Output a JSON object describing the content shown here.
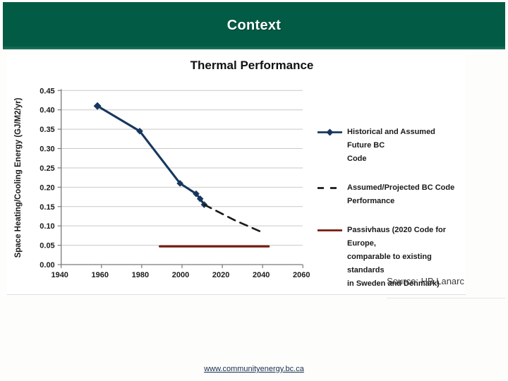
{
  "header": {
    "title": "Context"
  },
  "footer": {
    "link_text": "www.communityenergy.bc.ca"
  },
  "chart": {
    "title": "Thermal Performance",
    "source": "Source: HB Lanarc"
  },
  "legend": {
    "items": [
      {
        "label": "Historical and Assumed Future BC\nCode"
      },
      {
        "label": "Assumed/Projected BC Code\nPerformance"
      },
      {
        "label": "Passivhaus (2020 Code for Europe,\ncomparable to existing standards\nin Sweden and Denmark)"
      }
    ]
  },
  "theme": {
    "header_green": "#015B45",
    "header_text": "#FFFFFF",
    "grid_color": "#C9C9C9",
    "axis_color": "#7A7A7A",
    "tick_text_color": "#1A1A1A",
    "link_navy": "#16304F"
  },
  "chart_data": {
    "type": "line",
    "title": "Thermal Performance",
    "xlabel": "",
    "ylabel": "Space Heating/Cooling Energy (GJ/M2/yr)",
    "xlim": [
      1940,
      2060
    ],
    "ylim": [
      0,
      0.45
    ],
    "x_ticks": [
      "1940",
      "1960",
      "1980",
      "2000",
      "2020",
      "2040",
      "2060"
    ],
    "y_ticks": [
      "0.00",
      "0.05",
      "0.10",
      "0.15",
      "0.20",
      "0.25",
      "0.30",
      "0.35",
      "0.40",
      "0.45"
    ],
    "grid": true,
    "legend_position": "right",
    "series": [
      {
        "name": "Historical and Assumed Future BC Code",
        "color": "#17375E",
        "style": "solid",
        "marker": "diamond",
        "points": [
          [
            1958,
            0.41
          ],
          [
            1979,
            0.345
          ],
          [
            1999,
            0.21
          ],
          [
            2007,
            0.183
          ],
          [
            2009,
            0.17
          ],
          [
            2011,
            0.155
          ]
        ]
      },
      {
        "name": "Assumed/Projected BC Code Performance",
        "color": "#1A1A1A",
        "style": "dashed",
        "marker": "none",
        "points": [
          [
            2011,
            0.155
          ],
          [
            2026,
            0.115
          ],
          [
            2040,
            0.083
          ]
        ]
      },
      {
        "name": "Passivhaus (2020 Code for Europe, comparable to existing standards in Sweden and Denmark)",
        "color": "#771A10",
        "style": "solid",
        "marker": "none",
        "points": [
          [
            1989,
            0.047
          ],
          [
            2043,
            0.047
          ]
        ]
      }
    ]
  }
}
